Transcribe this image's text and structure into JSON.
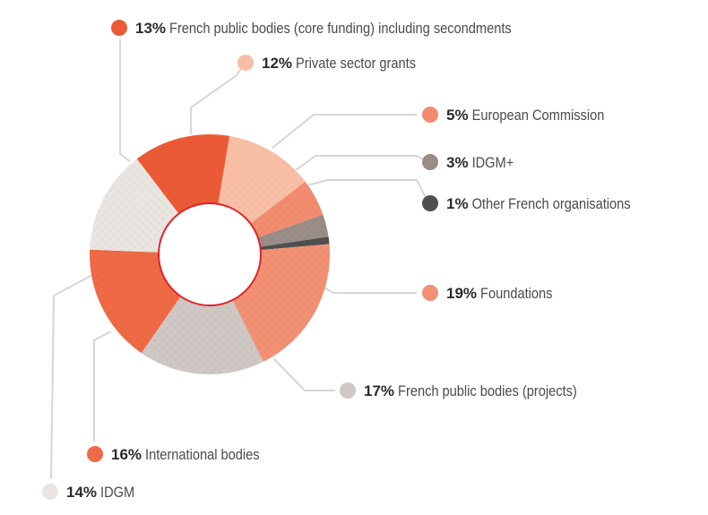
{
  "chart_data": {
    "type": "pie",
    "donut": true,
    "slices": [
      {
        "pct_label": "5%",
        "name": "European Commission",
        "value": 5,
        "color": "#f28c6e"
      },
      {
        "pct_label": "3%",
        "name": "IDGM+",
        "value": 3,
        "color": "#9a8c86"
      },
      {
        "pct_label": "1%",
        "name": "Other French organisations",
        "value": 1,
        "color": "#4f4f4f"
      },
      {
        "pct_label": "19%",
        "name": "Foundations",
        "value": 19,
        "color": "#f29073"
      },
      {
        "pct_label": "17%",
        "name": "French public bodies (projects)",
        "value": 17,
        "color": "#cfc7c4"
      },
      {
        "pct_label": "16%",
        "name": "International bodies",
        "value": 16,
        "color": "#ee6a45"
      },
      {
        "pct_label": "14%",
        "name": "IDGM",
        "value": 14,
        "color": "#e9e5e1"
      },
      {
        "pct_label": "13%",
        "name": "French public bodies (core funding) including secondments",
        "value": 13,
        "color": "#eb5a36"
      },
      {
        "pct_label": "12%",
        "name": "Private sector grants",
        "value": 12,
        "color": "#f8bfa6"
      }
    ],
    "hole_stroke_color": "#e0242b"
  }
}
